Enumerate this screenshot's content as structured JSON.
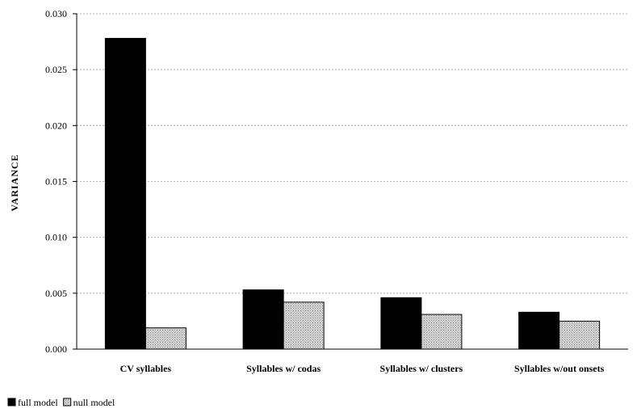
{
  "chart_data": {
    "type": "bar",
    "title": "",
    "xlabel": "",
    "ylabel": "VARIANCE",
    "ylim": [
      0,
      0.03
    ],
    "yticks": [
      "0.000",
      "0.005",
      "0.010",
      "0.015",
      "0.020",
      "0.025",
      "0.030"
    ],
    "ytick_values": [
      0,
      0.005,
      0.01,
      0.015,
      0.02,
      0.025,
      0.03
    ],
    "categories": [
      "CV syllables",
      "Syllables w/ codas",
      "Syllables w/ clusters",
      "Syllables w/out onsets"
    ],
    "series": [
      {
        "name": "full model",
        "color": "#000000",
        "values": [
          0.0278,
          0.0053,
          0.0046,
          0.0033
        ]
      },
      {
        "name": "null model",
        "color": "#c8c8c8",
        "pattern": "dotted",
        "values": [
          0.0019,
          0.0042,
          0.0031,
          0.0025
        ]
      }
    ],
    "grid": "horizontal dashed",
    "legend_position": "bottom-left"
  }
}
